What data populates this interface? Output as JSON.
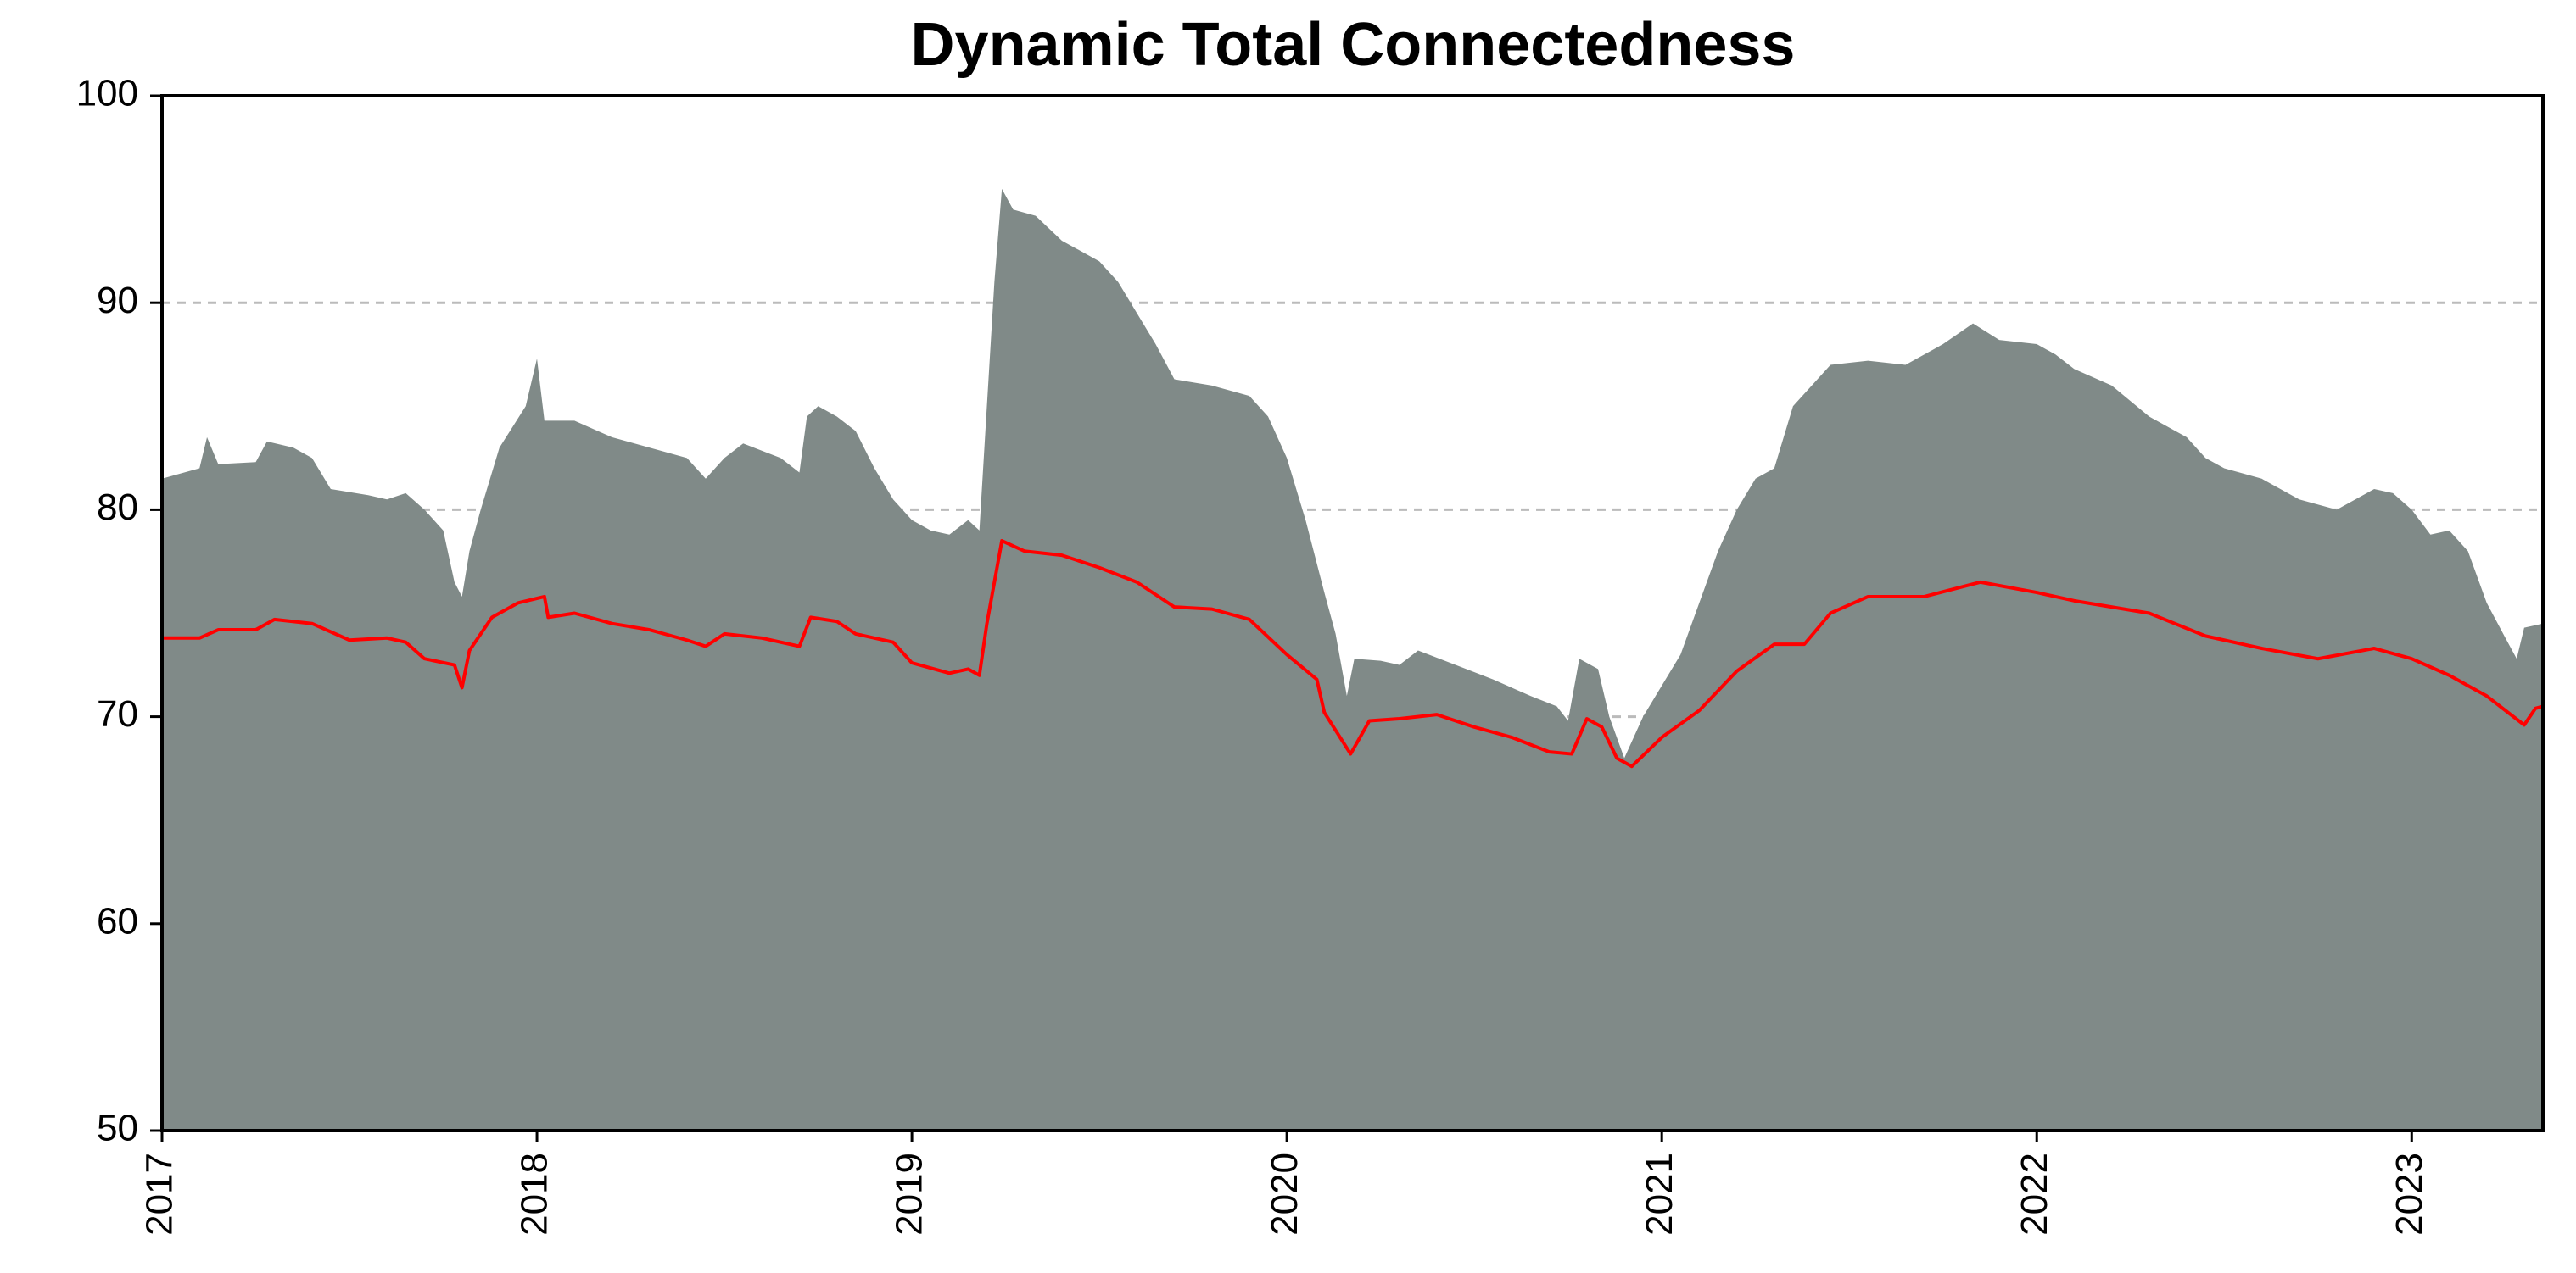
{
  "chart_data": {
    "type": "area-line",
    "title": "Dynamic Total Connectedness",
    "xlim": [
      2017,
      2023.35
    ],
    "xticks": [
      2017,
      2018,
      2019,
      2020,
      2021,
      2022,
      2023
    ],
    "ylim": [
      50,
      100
    ],
    "yticks": [
      50,
      60,
      70,
      80,
      90,
      100
    ],
    "grid": true,
    "series": [
      {
        "kind": "area",
        "color": "#808a88",
        "x": [
          2017.0,
          2017.1,
          2017.12,
          2017.15,
          2017.25,
          2017.28,
          2017.35,
          2017.4,
          2017.45,
          2017.55,
          2017.6,
          2017.65,
          2017.7,
          2017.75,
          2017.78,
          2017.8,
          2017.82,
          2017.85,
          2017.9,
          2017.97,
          2018.0,
          2018.02,
          2018.1,
          2018.2,
          2018.3,
          2018.4,
          2018.45,
          2018.5,
          2018.55,
          2018.65,
          2018.7,
          2018.72,
          2018.75,
          2018.8,
          2018.85,
          2018.9,
          2018.95,
          2019.0,
          2019.05,
          2019.1,
          2019.15,
          2019.18,
          2019.2,
          2019.22,
          2019.24,
          2019.27,
          2019.33,
          2019.4,
          2019.5,
          2019.55,
          2019.6,
          2019.65,
          2019.7,
          2019.8,
          2019.9,
          2019.95,
          2020.0,
          2020.05,
          2020.1,
          2020.13,
          2020.16,
          2020.18,
          2020.25,
          2020.3,
          2020.35,
          2020.45,
          2020.55,
          2020.65,
          2020.72,
          2020.75,
          2020.78,
          2020.83,
          2020.86,
          2020.9,
          2020.95,
          2021.0,
          2021.05,
          2021.1,
          2021.15,
          2021.2,
          2021.25,
          2021.3,
          2021.35,
          2021.4,
          2021.45,
          2021.55,
          2021.65,
          2021.75,
          2021.83,
          2021.9,
          2022.0,
          2022.05,
          2022.1,
          2022.2,
          2022.3,
          2022.4,
          2022.45,
          2022.5,
          2022.6,
          2022.7,
          2022.8,
          2022.9,
          2022.95,
          2023.0,
          2023.05,
          2023.1,
          2023.15,
          2023.2,
          2023.25,
          2023.28,
          2023.3,
          2023.35
        ],
        "values": [
          81.5,
          82.0,
          83.5,
          82.2,
          82.3,
          83.3,
          83.0,
          82.5,
          81.0,
          80.7,
          80.5,
          80.8,
          80.0,
          79.0,
          76.5,
          75.8,
          78.0,
          80.0,
          83.0,
          85.0,
          87.3,
          84.3,
          84.3,
          83.5,
          83.0,
          82.5,
          81.5,
          82.5,
          83.2,
          82.5,
          81.8,
          84.5,
          85.0,
          84.5,
          83.8,
          82.0,
          80.5,
          79.5,
          79.0,
          78.8,
          79.5,
          79.0,
          85.0,
          91.0,
          95.5,
          94.5,
          94.2,
          93.0,
          92.0,
          91.0,
          89.5,
          88.0,
          86.3,
          86.0,
          85.5,
          84.5,
          82.5,
          79.5,
          76.0,
          74.0,
          71.0,
          72.8,
          72.7,
          72.5,
          73.2,
          72.5,
          71.8,
          71.0,
          70.5,
          69.8,
          72.8,
          72.3,
          70.0,
          68.0,
          70.0,
          71.5,
          73.0,
          75.5,
          78.0,
          80.0,
          81.5,
          82.0,
          85.0,
          86.0,
          87.0,
          87.2,
          87.0,
          88.0,
          89.0,
          88.2,
          88.0,
          87.5,
          86.8,
          86.0,
          84.5,
          83.5,
          82.5,
          82.0,
          81.5,
          80.5,
          80.0,
          81.0,
          80.8,
          80.0,
          78.8,
          79.0,
          78.0,
          75.5,
          73.8,
          72.8,
          74.3,
          74.5
        ]
      },
      {
        "kind": "line",
        "color": "#ff0000",
        "x": [
          2017.0,
          2017.1,
          2017.15,
          2017.25,
          2017.3,
          2017.4,
          2017.5,
          2017.6,
          2017.65,
          2017.7,
          2017.78,
          2017.8,
          2017.82,
          2017.88,
          2017.95,
          2018.02,
          2018.03,
          2018.1,
          2018.2,
          2018.3,
          2018.4,
          2018.45,
          2018.5,
          2018.6,
          2018.7,
          2018.73,
          2018.8,
          2018.85,
          2018.95,
          2019.0,
          2019.1,
          2019.15,
          2019.18,
          2019.2,
          2019.24,
          2019.3,
          2019.4,
          2019.5,
          2019.6,
          2019.7,
          2019.8,
          2019.9,
          2020.0,
          2020.08,
          2020.1,
          2020.17,
          2020.22,
          2020.3,
          2020.4,
          2020.5,
          2020.6,
          2020.7,
          2020.76,
          2020.8,
          2020.84,
          2020.88,
          2020.92,
          2021.0,
          2021.1,
          2021.2,
          2021.3,
          2021.38,
          2021.45,
          2021.55,
          2021.7,
          2021.85,
          2022.0,
          2022.1,
          2022.3,
          2022.45,
          2022.6,
          2022.75,
          2022.9,
          2023.0,
          2023.1,
          2023.2,
          2023.3,
          2023.33,
          2023.35
        ],
        "values": [
          73.8,
          73.8,
          74.2,
          74.2,
          74.7,
          74.5,
          73.7,
          73.8,
          73.6,
          72.8,
          72.5,
          71.4,
          73.2,
          74.8,
          75.5,
          75.8,
          74.8,
          75.0,
          74.5,
          74.2,
          73.7,
          73.4,
          74.0,
          73.8,
          73.4,
          74.8,
          74.6,
          74.0,
          73.6,
          72.6,
          72.1,
          72.3,
          72.0,
          74.5,
          78.5,
          78.0,
          77.8,
          77.2,
          76.5,
          75.3,
          75.2,
          74.7,
          73.0,
          71.8,
          70.2,
          68.2,
          69.8,
          69.9,
          70.1,
          69.5,
          69.0,
          68.3,
          68.2,
          69.9,
          69.5,
          68.0,
          67.6,
          69.0,
          70.3,
          72.2,
          73.5,
          73.5,
          75.0,
          75.8,
          75.8,
          76.5,
          76.0,
          75.6,
          75.0,
          73.9,
          73.3,
          72.8,
          73.3,
          72.8,
          72.0,
          71.0,
          69.6,
          70.4,
          70.5
        ]
      }
    ]
  }
}
